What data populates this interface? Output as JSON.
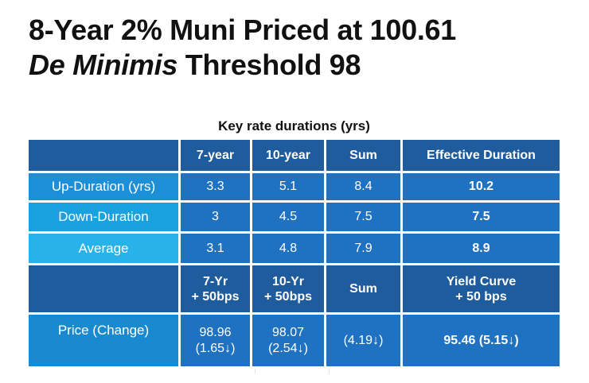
{
  "title": {
    "line1": "8-Year 2% Muni Priced at 100.61",
    "line2_italic": "De Minimis",
    "line2_rest": " Threshold 98"
  },
  "caption": "Key rate durations (yrs)",
  "table": {
    "header": [
      "",
      "7-year",
      "10-year",
      "Sum",
      "Effective Duration"
    ],
    "rows": [
      {
        "label": "Up-Duration (yrs)",
        "y7": "3.3",
        "y10": "5.1",
        "sum": "8.4",
        "eff": "10.2"
      },
      {
        "label": "Down-Duration",
        "y7": "3",
        "y10": "4.5",
        "sum": "7.5",
        "eff": "7.5"
      },
      {
        "label": "Average",
        "y7": "3.1",
        "y10": "4.8",
        "sum": "7.9",
        "eff": "8.9"
      }
    ],
    "header2": {
      "y7_line1": "7-Yr",
      "y7_line2": "+ 50bps",
      "y10_line1": "10-Yr",
      "y10_line2": "+ 50bps",
      "sum": "Sum",
      "eff_line1": "Yield Curve",
      "eff_line2": "+ 50 bps"
    },
    "price_row": {
      "label": "Price (Change)",
      "y7_line1": "98.96",
      "y7_line2": "(1.65↓)",
      "y10_line1": "98.07",
      "y10_line2": "(2.54↓)",
      "sum": "(4.19↓)",
      "eff": "95.46 (5.15↓)"
    }
  }
}
